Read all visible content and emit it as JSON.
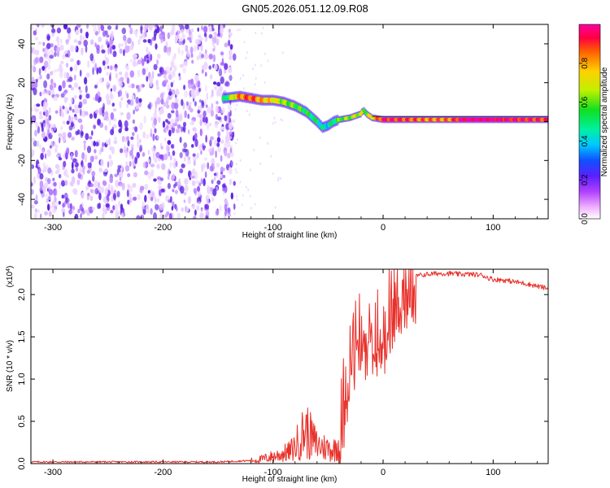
{
  "title": "GN05.2026.051.12.09.R08",
  "colors": {
    "snr_line": "#e8302a",
    "spectrogram_noise": "#7a3cf0",
    "ridge_core": "#e0201e"
  },
  "chart_data": [
    {
      "type": "heatmap",
      "name": "spectrogram",
      "xlabel": "Height of straight line (km)",
      "ylabel": "Frequency (Hz)",
      "xlim": [
        -320,
        150
      ],
      "ylim": [
        -50,
        50
      ],
      "xticks": [
        -300,
        -200,
        -100,
        0,
        100
      ],
      "yticks": [
        -40,
        -20,
        0,
        20,
        40
      ],
      "xtick_labels": [
        "-300",
        "-200",
        "-100",
        "0",
        "100"
      ],
      "ytick_labels": [
        "-40",
        "-20",
        "0",
        "20",
        "40"
      ],
      "noise_region_x": [
        -320,
        -135
      ],
      "ridge": {
        "x": [
          -145,
          -130,
          -120,
          -110,
          -100,
          -90,
          -80,
          -70,
          -60,
          -55,
          -50,
          -45,
          -40,
          -30,
          -20,
          -18,
          -15,
          -10,
          0,
          20,
          40,
          60,
          80,
          100,
          120,
          150
        ],
        "freq_hz": [
          12,
          13,
          12,
          11,
          11,
          10,
          8,
          5,
          0,
          -3,
          -2,
          0,
          1,
          2,
          4,
          6,
          4,
          2,
          1,
          1,
          1,
          1,
          1,
          1,
          1,
          1
        ],
        "amplitude": [
          0.35,
          0.75,
          0.8,
          0.7,
          0.65,
          0.55,
          0.5,
          0.45,
          0.4,
          0.35,
          0.35,
          0.4,
          0.5,
          0.55,
          0.6,
          0.5,
          0.55,
          0.65,
          0.85,
          0.8,
          0.75,
          0.75,
          0.95,
          0.9,
          0.85,
          0.8
        ]
      },
      "colorbar": {
        "label": "Normalized spectral amplitude",
        "range": [
          0,
          1
        ],
        "ticks": [
          0.0,
          0.2,
          0.4,
          0.6,
          0.8
        ],
        "tick_labels": [
          "0.0",
          "0.2",
          "0.4",
          "0.6",
          "0.8"
        ]
      }
    },
    {
      "type": "line",
      "name": "snr",
      "xlabel": "Height of straight line (km)",
      "ylabel": "SNR (10 * v/v)",
      "y_multiplier": "(x10",
      "y_multiplier_exp": "4",
      "y_multiplier_close": ")",
      "xlim": [
        -320,
        150
      ],
      "ylim": [
        0,
        2.3
      ],
      "xticks": [
        -300,
        -200,
        -100,
        0,
        100
      ],
      "yticks": [
        0.0,
        0.5,
        1.0,
        1.5,
        2.0
      ],
      "xtick_labels": [
        "-300",
        "-200",
        "-100",
        "0",
        "100"
      ],
      "ytick_labels": [
        "0.0",
        "0.5",
        "1.0",
        "1.5",
        "2.0"
      ],
      "series": [
        {
          "name": "SNR",
          "x": [
            -320,
            -250,
            -200,
            -150,
            -130,
            -115,
            -105,
            -95,
            -85,
            -80,
            -75,
            -70,
            -65,
            -60,
            -55,
            -50,
            -45,
            -40,
            -35,
            -30,
            -25,
            -20,
            -15,
            -10,
            -5,
            0,
            5,
            10,
            15,
            20,
            25,
            30,
            40,
            50,
            60,
            70,
            80,
            90,
            95,
            100,
            110,
            120,
            130,
            140,
            150
          ],
          "y": [
            0.02,
            0.02,
            0.02,
            0.02,
            0.03,
            0.04,
            0.07,
            0.1,
            0.14,
            0.2,
            0.32,
            0.4,
            0.3,
            0.22,
            0.2,
            0.18,
            0.16,
            0.25,
            0.9,
            1.3,
            1.45,
            1.5,
            1.55,
            1.58,
            1.6,
            1.65,
            1.8,
            1.95,
            2.05,
            2.1,
            2.18,
            2.22,
            2.24,
            2.25,
            2.25,
            2.24,
            2.24,
            2.23,
            2.2,
            2.18,
            2.17,
            2.15,
            2.13,
            2.1,
            2.07
          ]
        }
      ]
    }
  ]
}
